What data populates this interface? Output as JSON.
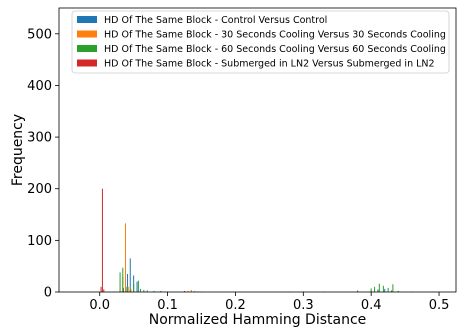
{
  "chart_data": {
    "type": "bar",
    "xlabel": "Normalized Hamming Distance",
    "ylabel": "Frequency",
    "xlim": [
      -0.06,
      0.525
    ],
    "ylim": [
      0,
      550
    ],
    "xticks": [
      0.0,
      0.1,
      0.2,
      0.3,
      0.4,
      0.5
    ],
    "xtick_labels": [
      "0.0",
      "0.1",
      "0.2",
      "0.3",
      "0.4",
      "0.5"
    ],
    "yticks": [
      0,
      100,
      200,
      300,
      400,
      500
    ],
    "ytick_labels": [
      "0",
      "100",
      "200",
      "300",
      "400",
      "500"
    ],
    "grid": false,
    "legend_position": "top-right",
    "bin_width": 0.0012,
    "series": [
      {
        "name": "HD Of The Same Block - Control Versus Control",
        "color": "#1f77b4",
        "x": [
          0.035,
          0.041,
          0.045,
          0.05,
          0.055,
          0.06,
          0.07,
          0.08,
          0.09,
          0.1,
          0.145,
          0.28,
          0.3,
          0.33,
          0.38,
          0.4,
          0.41,
          0.42,
          0.43,
          0.44,
          0.46,
          0.49
        ],
        "values": [
          8,
          35,
          65,
          32,
          20,
          6,
          3,
          2,
          2,
          1,
          1,
          1,
          1,
          1,
          2,
          3,
          5,
          6,
          3,
          2,
          1,
          1
        ]
      },
      {
        "name": "HD Of The Same Block - 30 Seconds Cooling Versus 30 Seconds Cooling",
        "color": "#ff7f0e",
        "x": [
          0.03,
          0.034,
          0.038,
          0.042,
          0.046,
          0.05,
          0.06,
          0.13,
          0.135,
          0.14
        ],
        "values": [
          5,
          30,
          133,
          10,
          6,
          3,
          2,
          2,
          4,
          2
        ]
      },
      {
        "name": "HD Of The Same Block - 60 Seconds Cooling Versus 60 Seconds Cooling",
        "color": "#2ca02c",
        "x": [
          0.03,
          0.034,
          0.04,
          0.045,
          0.05,
          0.057,
          0.065,
          0.08,
          0.27,
          0.38,
          0.4,
          0.405,
          0.412,
          0.418,
          0.425,
          0.432,
          0.44
        ],
        "values": [
          38,
          47,
          10,
          5,
          15,
          22,
          4,
          2,
          1,
          3,
          7,
          10,
          16,
          12,
          8,
          15,
          2
        ]
      },
      {
        "name": "HD Of The Same Block - Submerged in LN2 Versus Submerged in LN2",
        "color": "#d62728",
        "x": [
          0.002,
          0.004,
          0.006,
          0.035,
          0.045,
          0.125,
          0.14,
          0.15
        ],
        "values": [
          10,
          200,
          5,
          2,
          1,
          2,
          1,
          1
        ]
      }
    ]
  }
}
